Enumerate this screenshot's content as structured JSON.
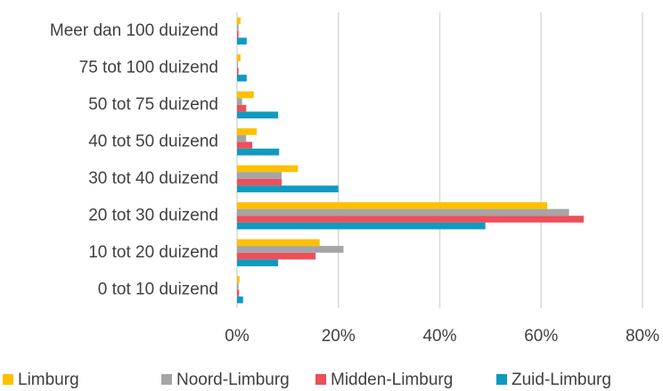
{
  "chart_data": {
    "type": "hbar",
    "categories": [
      "Meer dan 100 duizend",
      "75 tot 100 duizend",
      "50 tot 75 duizend",
      "40 tot 50 duizend",
      "30 tot 40 duizend",
      "20 tot 30 duizend",
      "10 tot 20 duizend",
      "0 tot 10 duizend"
    ],
    "series": [
      {
        "name": "Limburg",
        "color": "#ffc000",
        "values": [
          0.7,
          0.7,
          3.3,
          3.9,
          12,
          61.2,
          16.3,
          0.5
        ]
      },
      {
        "name": "Noord-Limburg",
        "color": "#a5a5a5",
        "values": [
          0.3,
          0.2,
          1,
          1.8,
          8.8,
          65.5,
          21,
          0.3
        ]
      },
      {
        "name": "Midden-Limburg",
        "color": "#ee4f5a",
        "values": [
          0.3,
          0.3,
          1.8,
          3,
          8.8,
          68.4,
          15.5,
          0.4
        ]
      },
      {
        "name": "Zuid-Limburg",
        "color": "#0f9bc0",
        "values": [
          1.9,
          1.9,
          8.1,
          8.3,
          20,
          49,
          8.1,
          1.2
        ]
      }
    ],
    "xlim": [
      0,
      80
    ],
    "xticks": [
      {
        "value": 0,
        "label": "0%"
      },
      {
        "value": 20,
        "label": "20%"
      },
      {
        "value": 40,
        "label": "40%"
      },
      {
        "value": 60,
        "label": "60%"
      },
      {
        "value": 80,
        "label": "80%"
      }
    ],
    "grid": true,
    "legend": "bottom"
  }
}
